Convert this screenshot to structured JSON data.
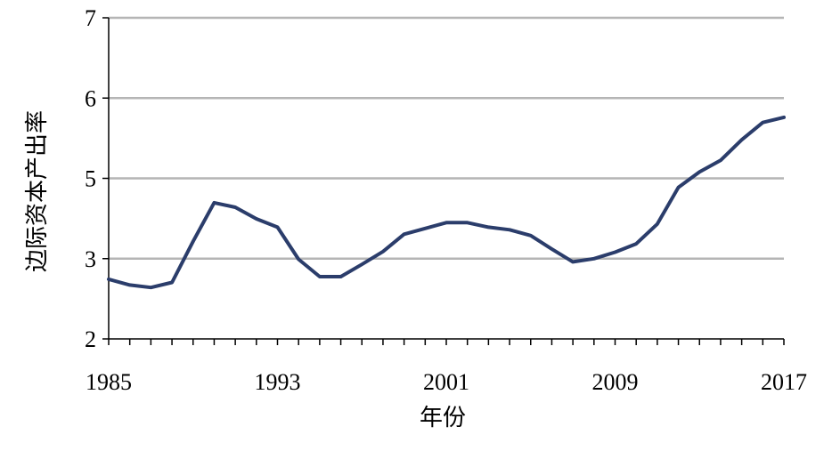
{
  "chart_data": {
    "type": "line",
    "title": "",
    "xlabel": "年份",
    "ylabel": "边际资本产出率",
    "ylim": [
      2,
      7
    ],
    "xlim": [
      1985,
      2017
    ],
    "y_ticks": [
      "2",
      "3",
      "5",
      "6",
      "7"
    ],
    "x_tick_labels": [
      "1985",
      "1993",
      "2001",
      "2009",
      "2017"
    ],
    "grid": true,
    "legend": "none",
    "line_color": "#2b3d6b",
    "grid_color": "#b5b5b5",
    "series": [
      {
        "x": [
          1985,
          1986,
          1987,
          1988,
          1989,
          1990,
          1991,
          1992,
          1993,
          1994,
          1995,
          1996,
          1997,
          1998,
          1999,
          2000,
          2001,
          2002,
          2003,
          2004,
          2005,
          2006,
          2007,
          2008,
          2009,
          2010,
          2011,
          2012,
          2013,
          2014,
          2015,
          2016,
          2017
        ],
        "y": [
          2.93,
          2.84,
          2.8,
          2.88,
          3.52,
          4.12,
          4.05,
          3.87,
          3.74,
          3.24,
          2.97,
          2.97,
          3.16,
          3.36,
          3.63,
          3.72,
          3.81,
          3.81,
          3.74,
          3.7,
          3.61,
          3.4,
          3.2,
          3.25,
          3.35,
          3.48,
          3.79,
          4.36,
          4.6,
          4.78,
          5.1,
          5.37,
          5.45
        ]
      }
    ]
  }
}
